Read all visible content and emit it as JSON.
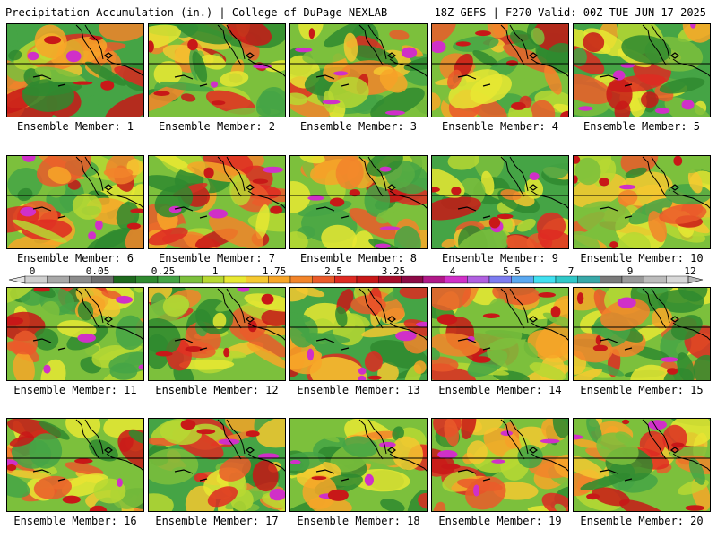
{
  "header": {
    "title": "Precipitation Accumulation (in.) | College of DuPage NEXLAB",
    "run_info": "18Z GEFS | F270 Valid: 00Z TUE JUN 17 2025"
  },
  "legend": {
    "labels": [
      "0",
      "0.05",
      "0.25",
      "1",
      "1.75",
      "2.5",
      "3.25",
      "4",
      "5.5",
      "7",
      "9",
      "12"
    ],
    "colors": [
      "#cfcfcf",
      "#a8a8a8",
      "#8c8c8c",
      "#6e6e6e",
      "#1e6a1e",
      "#2f8a2f",
      "#45a445",
      "#7cc03c",
      "#b7d832",
      "#e8e832",
      "#f5c830",
      "#f7a628",
      "#f2842a",
      "#ea5a2a",
      "#de2a22",
      "#c81818",
      "#a60c2a",
      "#8c0a46",
      "#b01888",
      "#d030c8",
      "#b060e0",
      "#7c7cf0",
      "#5aa8f0",
      "#40e0f0",
      "#30c8c8",
      "#38a8a8",
      "#7a7a7a",
      "#9a9a9a",
      "#bcbcbc",
      "#d8d8d8"
    ]
  },
  "members": [
    {
      "caption": "Ensemble Member: 1"
    },
    {
      "caption": "Ensemble Member: 2"
    },
    {
      "caption": "Ensemble Member: 3"
    },
    {
      "caption": "Ensemble Member: 4"
    },
    {
      "caption": "Ensemble Member: 5"
    },
    {
      "caption": "Ensemble Member: 6"
    },
    {
      "caption": "Ensemble Member: 7"
    },
    {
      "caption": "Ensemble Member: 8"
    },
    {
      "caption": "Ensemble Member: 9"
    },
    {
      "caption": "Ensemble Member: 10"
    },
    {
      "caption": "Ensemble Member: 11"
    },
    {
      "caption": "Ensemble Member: 12"
    },
    {
      "caption": "Ensemble Member: 13"
    },
    {
      "caption": "Ensemble Member: 14"
    },
    {
      "caption": "Ensemble Member: 15"
    },
    {
      "caption": "Ensemble Member: 16"
    },
    {
      "caption": "Ensemble Member: 17"
    },
    {
      "caption": "Ensemble Member: 18"
    },
    {
      "caption": "Ensemble Member: 19"
    },
    {
      "caption": "Ensemble Member: 20"
    }
  ]
}
